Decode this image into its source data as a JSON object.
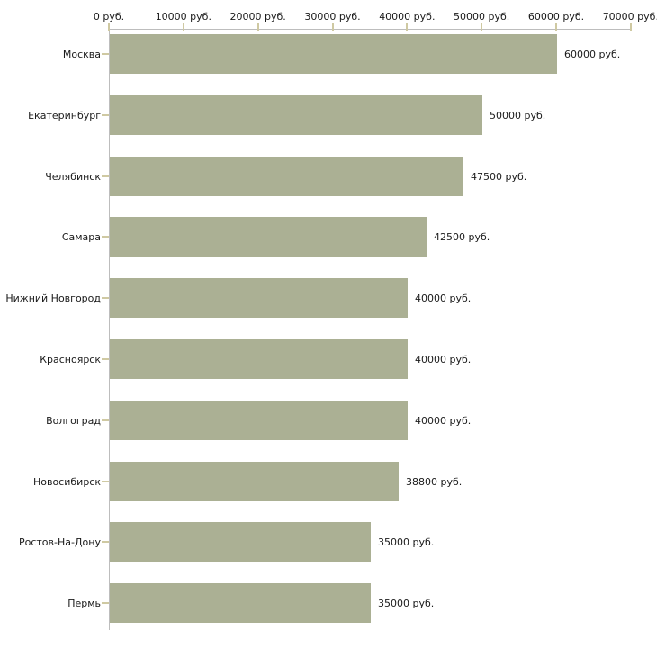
{
  "chart_data": {
    "type": "bar",
    "orientation": "horizontal",
    "title": "",
    "xlabel": "",
    "ylabel": "",
    "grid": false,
    "legend": "none",
    "categories": [
      "Москва",
      "Екатеринбург",
      "Челябинск",
      "Самара",
      "Нижний Новгород",
      "Красноярск",
      "Волгоград",
      "Новосибирск",
      "Ростов-На-Дону",
      "Пермь"
    ],
    "values": [
      60000,
      50000,
      47500,
      42500,
      40000,
      40000,
      40000,
      38800,
      35000,
      35000
    ],
    "value_labels": [
      "60000 руб.",
      "50000 руб.",
      "47500 руб.",
      "42500 руб.",
      "40000 руб.",
      "40000 руб.",
      "40000 руб.",
      "38800 руб.",
      "35000 руб.",
      "35000 руб."
    ],
    "x_axis": {
      "position": "top",
      "range": [
        0,
        70000
      ],
      "ticks": [
        0,
        10000,
        20000,
        30000,
        40000,
        50000,
        60000,
        70000
      ],
      "tick_labels": [
        "0 руб.",
        "10000 руб.",
        "20000 руб.",
        "30000 руб.",
        "40000 руб.",
        "50000 руб.",
        "60000 руб.",
        "70000 руб."
      ],
      "unit": "руб."
    },
    "colors": {
      "bar": "#abb094",
      "axis_line": "#bdbdbd",
      "tick": "#cfc9a2",
      "text": "#1a1a1a",
      "background": "#ffffff"
    }
  }
}
